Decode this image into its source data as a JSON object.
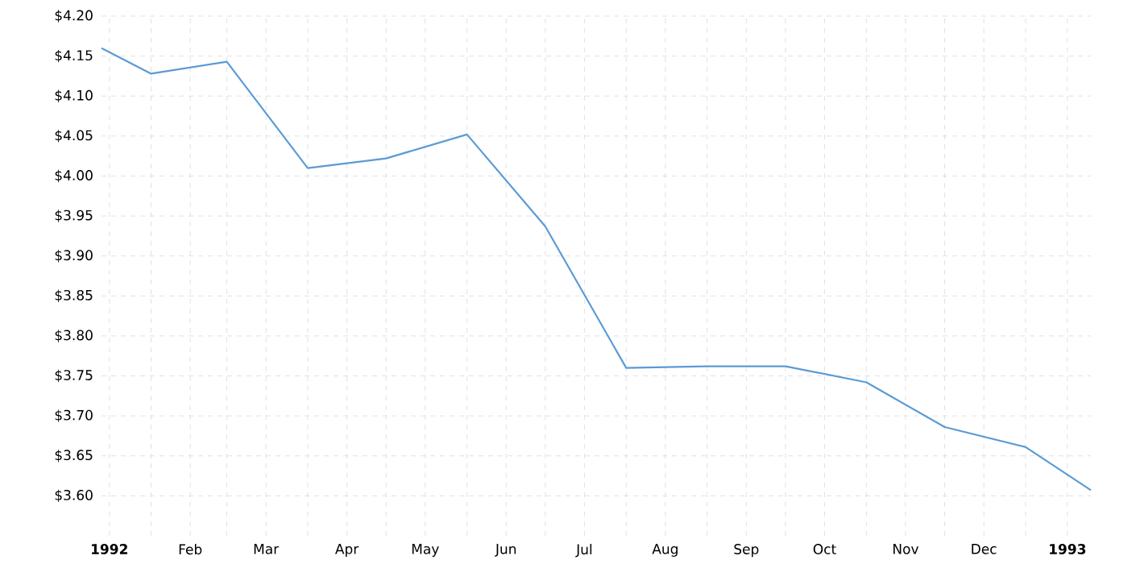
{
  "chart_data": {
    "type": "line",
    "x": [
      "1992-01-12",
      "1992-01-31",
      "1992-02-29",
      "1992-03-31",
      "1992-04-30",
      "1992-05-31",
      "1992-06-30",
      "1992-07-31",
      "1992-08-31",
      "1992-09-30",
      "1992-10-31",
      "1992-11-30",
      "1992-12-31",
      "1993-01-25"
    ],
    "series": [
      {
        "color": "#5b9bd5",
        "values": [
          4.16,
          4.128,
          4.143,
          4.01,
          4.022,
          4.052,
          3.937,
          3.76,
          3.762,
          3.762,
          3.742,
          3.686,
          3.661,
          3.607
        ]
      }
    ],
    "xlim": [
      "1992-01-12",
      "1993-01-25"
    ],
    "xticks": [
      {
        "value": "1992-01-15",
        "label": "1992"
      },
      {
        "value": "1992-01-31",
        "label": null
      },
      {
        "value": "1992-02-15",
        "label": "Feb"
      },
      {
        "value": "1992-02-29",
        "label": null
      },
      {
        "value": "1992-03-15",
        "label": "Mar"
      },
      {
        "value": "1992-03-31",
        "label": null
      },
      {
        "value": "1992-04-15",
        "label": "Apr"
      },
      {
        "value": "1992-04-30",
        "label": null
      },
      {
        "value": "1992-05-15",
        "label": "May"
      },
      {
        "value": "1992-05-31",
        "label": null
      },
      {
        "value": "1992-06-15",
        "label": "Jun"
      },
      {
        "value": "1992-06-30",
        "label": null
      },
      {
        "value": "1992-07-15",
        "label": "Jul"
      },
      {
        "value": "1992-07-31",
        "label": null
      },
      {
        "value": "1992-08-15",
        "label": "Aug"
      },
      {
        "value": "1992-08-31",
        "label": null
      },
      {
        "value": "1992-09-15",
        "label": "Sep"
      },
      {
        "value": "1992-09-30",
        "label": null
      },
      {
        "value": "1992-10-15",
        "label": "Oct"
      },
      {
        "value": "1992-10-31",
        "label": null
      },
      {
        "value": "1992-11-15",
        "label": "Nov"
      },
      {
        "value": "1992-11-30",
        "label": null
      },
      {
        "value": "1992-12-15",
        "label": "Dec"
      },
      {
        "value": "1992-12-31",
        "label": null
      },
      {
        "value": "1993-01-16",
        "label": "1993"
      }
    ],
    "ylim": [
      3.55,
      4.2
    ],
    "yticks": [
      {
        "value": 3.6,
        "label": "$3.60"
      },
      {
        "value": 3.65,
        "label": "$3.65"
      },
      {
        "value": 3.7,
        "label": "$3.70"
      },
      {
        "value": 3.75,
        "label": "$3.75"
      },
      {
        "value": 3.8,
        "label": "$3.80"
      },
      {
        "value": 3.85,
        "label": "$3.85"
      },
      {
        "value": 3.9,
        "label": "$3.90"
      },
      {
        "value": 3.95,
        "label": "$3.95"
      },
      {
        "value": 4.0,
        "label": "$4.00"
      },
      {
        "value": 4.05,
        "label": "$4.05"
      },
      {
        "value": 4.1,
        "label": "$4.10"
      },
      {
        "value": 4.15,
        "label": "$4.15"
      },
      {
        "value": 4.2,
        "label": "$4.20"
      }
    ],
    "grid": true
  }
}
